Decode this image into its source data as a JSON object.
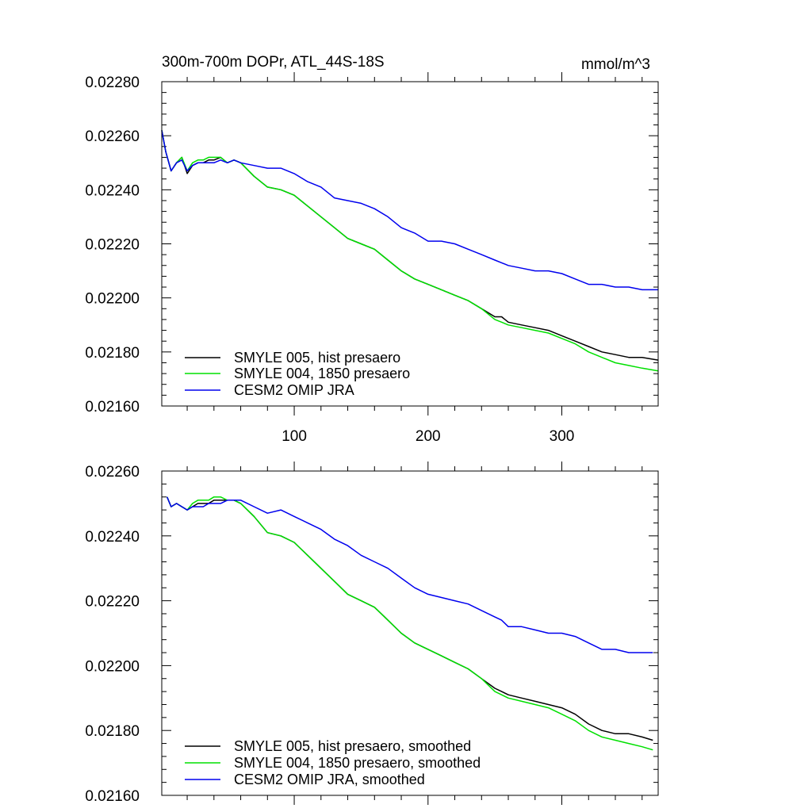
{
  "chart_data": [
    {
      "type": "line",
      "title": "300m-700m DOPr, ATL_44S-18S",
      "units": "mmol/m^3",
      "xlabel": "",
      "ylabel": "",
      "xlim": [
        1,
        372
      ],
      "ylim": [
        0.0216,
        0.0228
      ],
      "x_ticks": [
        100,
        200,
        300
      ],
      "x_tick_labels": [
        "100",
        "200",
        "300"
      ],
      "y_ticks": [
        0.0216,
        0.0218,
        0.022,
        0.0222,
        0.0224,
        0.0226,
        0.0228
      ],
      "y_tick_labels": [
        "0.02160",
        "0.02180",
        "0.02200",
        "0.02220",
        "0.02240",
        "0.02260",
        "0.02280"
      ],
      "legend_position": "bottom-left",
      "series": [
        {
          "name": "SMYLE 005, hist presaero",
          "color": "#000000",
          "x": [
            1,
            4,
            8,
            12,
            16,
            20,
            24,
            28,
            32,
            36,
            40,
            45,
            50,
            55,
            60,
            70,
            80,
            90,
            100,
            110,
            120,
            130,
            140,
            150,
            160,
            170,
            180,
            190,
            200,
            210,
            220,
            230,
            240,
            250,
            255,
            260,
            270,
            280,
            290,
            300,
            310,
            320,
            330,
            340,
            350,
            360,
            372
          ],
          "values": [
            0.02262,
            0.02254,
            0.02247,
            0.0225,
            0.02252,
            0.02246,
            0.02249,
            0.0225,
            0.0225,
            0.02251,
            0.02251,
            0.02252,
            0.0225,
            0.02251,
            0.0225,
            0.02245,
            0.02241,
            0.0224,
            0.02238,
            0.02234,
            0.0223,
            0.02226,
            0.02222,
            0.0222,
            0.02218,
            0.02214,
            0.0221,
            0.02207,
            0.02205,
            0.02203,
            0.02201,
            0.02199,
            0.02196,
            0.02193,
            0.02193,
            0.02191,
            0.0219,
            0.02189,
            0.02188,
            0.02186,
            0.02184,
            0.02182,
            0.0218,
            0.02179,
            0.02178,
            0.02178,
            0.02177
          ]
        },
        {
          "name": "SMYLE 004, 1850 presaero",
          "color": "#00e000",
          "x": [
            1,
            4,
            8,
            12,
            16,
            20,
            24,
            28,
            32,
            36,
            40,
            45,
            50,
            55,
            60,
            70,
            80,
            90,
            100,
            110,
            120,
            130,
            140,
            150,
            160,
            170,
            180,
            190,
            200,
            210,
            220,
            230,
            240,
            250,
            255,
            260,
            270,
            280,
            290,
            300,
            310,
            320,
            330,
            340,
            350,
            360,
            372
          ],
          "values": [
            0.02262,
            0.02254,
            0.02247,
            0.0225,
            0.02252,
            0.02247,
            0.0225,
            0.02251,
            0.02251,
            0.02252,
            0.02252,
            0.02252,
            0.0225,
            0.02251,
            0.0225,
            0.02245,
            0.02241,
            0.0224,
            0.02238,
            0.02234,
            0.0223,
            0.02226,
            0.02222,
            0.0222,
            0.02218,
            0.02214,
            0.0221,
            0.02207,
            0.02205,
            0.02203,
            0.02201,
            0.02199,
            0.02196,
            0.02192,
            0.02191,
            0.0219,
            0.02189,
            0.02188,
            0.02187,
            0.02185,
            0.02183,
            0.0218,
            0.02178,
            0.02176,
            0.02175,
            0.02174,
            0.02173
          ]
        },
        {
          "name": "CESM2 OMIP JRA",
          "color": "#0000ee",
          "x": [
            1,
            4,
            8,
            12,
            16,
            20,
            24,
            28,
            32,
            36,
            40,
            45,
            50,
            55,
            60,
            70,
            80,
            90,
            100,
            110,
            120,
            130,
            140,
            150,
            160,
            170,
            180,
            190,
            200,
            210,
            220,
            230,
            240,
            250,
            255,
            260,
            270,
            280,
            290,
            300,
            310,
            320,
            330,
            340,
            350,
            360,
            372
          ],
          "values": [
            0.02262,
            0.02254,
            0.02247,
            0.0225,
            0.02251,
            0.02247,
            0.02249,
            0.0225,
            0.0225,
            0.0225,
            0.0225,
            0.02251,
            0.0225,
            0.02251,
            0.0225,
            0.02249,
            0.02248,
            0.02248,
            0.02246,
            0.02243,
            0.02241,
            0.02237,
            0.02236,
            0.02235,
            0.02233,
            0.0223,
            0.02226,
            0.02224,
            0.02221,
            0.02221,
            0.0222,
            0.02218,
            0.02216,
            0.02214,
            0.02213,
            0.02212,
            0.02211,
            0.0221,
            0.0221,
            0.02209,
            0.02207,
            0.02205,
            0.02205,
            0.02204,
            0.02204,
            0.02203,
            0.02203
          ]
        }
      ]
    },
    {
      "type": "line",
      "title": "",
      "xlabel": "",
      "ylabel": "",
      "xlim": [
        1,
        372
      ],
      "ylim": [
        0.0216,
        0.0226
      ],
      "x_ticks": [
        100,
        200,
        300
      ],
      "x_tick_labels": [],
      "y_ticks": [
        0.0216,
        0.0218,
        0.022,
        0.0222,
        0.0224,
        0.0226
      ],
      "y_tick_labels": [
        "0.02160",
        "0.02180",
        "0.02200",
        "0.02220",
        "0.02240",
        "0.02260"
      ],
      "legend_position": "bottom-left",
      "series": [
        {
          "name": "SMYLE 005, hist presaero, smoothed",
          "color": "#000000",
          "x": [
            5,
            8,
            12,
            16,
            20,
            24,
            28,
            32,
            36,
            40,
            45,
            50,
            55,
            60,
            70,
            80,
            90,
            100,
            110,
            120,
            130,
            140,
            150,
            160,
            170,
            180,
            190,
            200,
            210,
            220,
            230,
            240,
            250,
            255,
            260,
            270,
            280,
            290,
            300,
            310,
            320,
            330,
            340,
            350,
            360,
            368
          ],
          "values": [
            0.02252,
            0.02249,
            0.0225,
            0.02249,
            0.02248,
            0.02249,
            0.0225,
            0.0225,
            0.0225,
            0.02251,
            0.02251,
            0.02251,
            0.02251,
            0.0225,
            0.02246,
            0.02241,
            0.0224,
            0.02238,
            0.02234,
            0.0223,
            0.02226,
            0.02222,
            0.0222,
            0.02218,
            0.02214,
            0.0221,
            0.02207,
            0.02205,
            0.02203,
            0.02201,
            0.02199,
            0.02196,
            0.02193,
            0.02192,
            0.02191,
            0.0219,
            0.02189,
            0.02188,
            0.02187,
            0.02185,
            0.02182,
            0.0218,
            0.02179,
            0.02179,
            0.02178,
            0.02177
          ]
        },
        {
          "name": "SMYLE 004, 1850 presaero, smoothed",
          "color": "#00e000",
          "x": [
            5,
            8,
            12,
            16,
            20,
            24,
            28,
            32,
            36,
            40,
            45,
            50,
            55,
            60,
            70,
            80,
            90,
            100,
            110,
            120,
            130,
            140,
            150,
            160,
            170,
            180,
            190,
            200,
            210,
            220,
            230,
            240,
            250,
            255,
            260,
            270,
            280,
            290,
            300,
            310,
            320,
            330,
            340,
            350,
            360,
            368
          ],
          "values": [
            0.02252,
            0.02249,
            0.0225,
            0.02249,
            0.02248,
            0.0225,
            0.02251,
            0.02251,
            0.02251,
            0.02252,
            0.02252,
            0.02251,
            0.02251,
            0.0225,
            0.02246,
            0.02241,
            0.0224,
            0.02238,
            0.02234,
            0.0223,
            0.02226,
            0.02222,
            0.0222,
            0.02218,
            0.02214,
            0.0221,
            0.02207,
            0.02205,
            0.02203,
            0.02201,
            0.02199,
            0.02196,
            0.02192,
            0.02191,
            0.0219,
            0.02189,
            0.02188,
            0.02187,
            0.02185,
            0.02183,
            0.0218,
            0.02178,
            0.02177,
            0.02176,
            0.02175,
            0.02174
          ]
        },
        {
          "name": "CESM2 OMIP JRA, smoothed",
          "color": "#0000ee",
          "x": [
            5,
            8,
            12,
            16,
            20,
            24,
            28,
            32,
            36,
            40,
            45,
            50,
            55,
            60,
            70,
            80,
            90,
            100,
            110,
            120,
            130,
            140,
            150,
            160,
            170,
            180,
            190,
            200,
            210,
            220,
            230,
            240,
            250,
            255,
            260,
            270,
            280,
            290,
            300,
            310,
            320,
            330,
            340,
            350,
            360,
            368
          ],
          "values": [
            0.02252,
            0.02249,
            0.0225,
            0.02249,
            0.02248,
            0.02249,
            0.02249,
            0.02249,
            0.0225,
            0.0225,
            0.0225,
            0.02251,
            0.02251,
            0.02251,
            0.02249,
            0.02247,
            0.02248,
            0.02246,
            0.02244,
            0.02242,
            0.02239,
            0.02237,
            0.02234,
            0.02232,
            0.0223,
            0.02227,
            0.02224,
            0.02222,
            0.02221,
            0.0222,
            0.02219,
            0.02217,
            0.02215,
            0.02214,
            0.02212,
            0.02212,
            0.02211,
            0.0221,
            0.0221,
            0.02209,
            0.02207,
            0.02205,
            0.02205,
            0.02204,
            0.02204,
            0.02204
          ]
        }
      ]
    }
  ]
}
